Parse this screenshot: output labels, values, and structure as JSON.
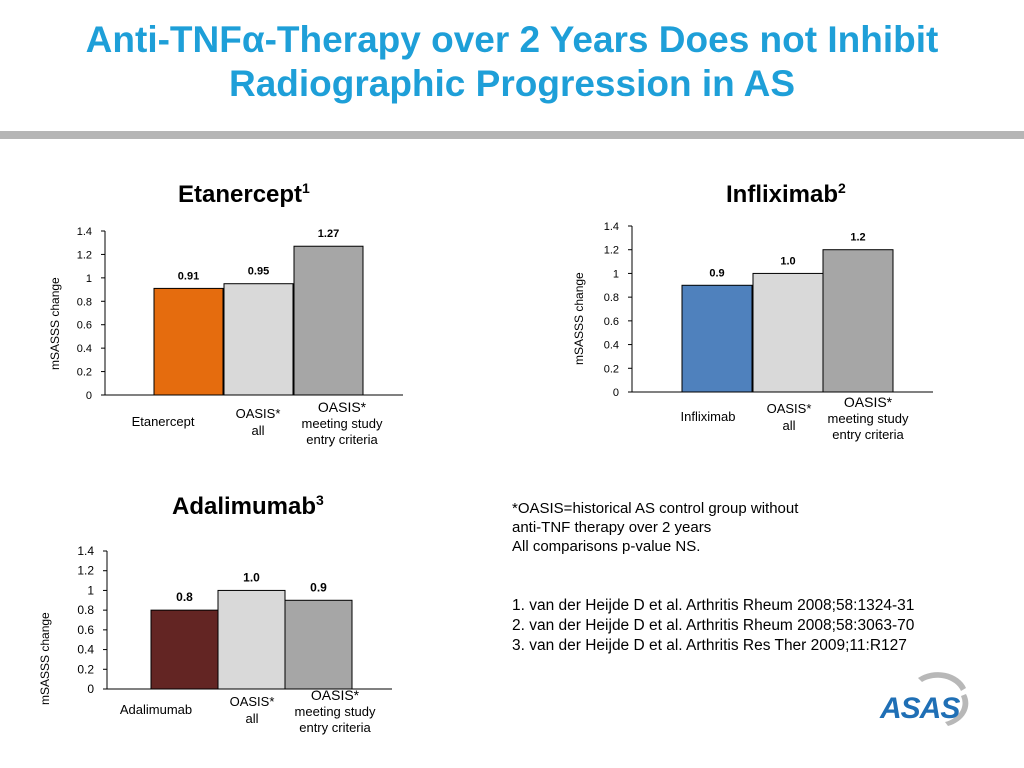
{
  "slide": {
    "title_line1": "Anti-TNFα-Therapy over 2 Years Does not Inhibit",
    "title_line2": "Radiographic Progression in AS",
    "note_lines": [
      "*OASIS=historical AS control group without",
      "anti-TNF therapy over 2 years",
      "All comparisons p-value NS."
    ],
    "references": [
      "1. van der Heijde D et al. Arthritis Rheum 2008;58:1324-31",
      "2. van der Heijde D et al. Arthritis Rheum 2008;58:3063-70",
      "3. van der Heijde D et al. Arthritis Res Ther 2009;11:R127"
    ],
    "logo_text": "ASAS"
  },
  "chart_data": [
    {
      "type": "bar",
      "title": "Etanercept",
      "title_sup": "1",
      "ylabel": "mSASSS  change",
      "ylim": [
        0,
        1.4
      ],
      "yticks": [
        "0",
        "0.2",
        "0.4",
        "0.6",
        "0.8",
        "1",
        "1.2",
        "1.4"
      ],
      "categories": [
        [
          "Etanercept"
        ],
        [
          "OASIS*",
          "all"
        ],
        [
          "OASIS*",
          "meeting study",
          "entry criteria"
        ]
      ],
      "values": [
        0.91,
        0.95,
        1.27
      ],
      "value_labels": [
        "0.91",
        "0.95",
        "1.27"
      ],
      "colors": [
        "#E56C0E",
        "#D9D9D9",
        "#A6A6A6"
      ]
    },
    {
      "type": "bar",
      "title": "Infliximab",
      "title_sup": "2",
      "ylabel": "mSASSS change",
      "ylim": [
        0,
        1.4
      ],
      "yticks": [
        "0",
        "0.2",
        "0.4",
        "0.6",
        "0.8",
        "1",
        "1.2",
        "1.4"
      ],
      "categories": [
        [
          "Infliximab"
        ],
        [
          "OASIS*",
          "all"
        ],
        [
          "OASIS*",
          "meeting study",
          "entry criteria"
        ]
      ],
      "values": [
        0.9,
        1.0,
        1.2
      ],
      "value_labels": [
        "0.9",
        "1.0",
        "1.2"
      ],
      "colors": [
        "#4F81BD",
        "#D9D9D9",
        "#A6A6A6"
      ]
    },
    {
      "type": "bar",
      "title": "Adalimumab",
      "title_sup": "3",
      "ylabel": "mSASSS change",
      "ylim": [
        0,
        1.4
      ],
      "yticks": [
        "0",
        "0.2",
        "0.4",
        "0.6",
        "0.8",
        "1",
        "1.2",
        "1.4"
      ],
      "categories": [
        [
          "Adalimumab"
        ],
        [
          "OASIS*",
          "all"
        ],
        [
          "OASIS*",
          "meeting study",
          "entry criteria"
        ]
      ],
      "values": [
        0.8,
        1.0,
        0.9
      ],
      "value_labels": [
        "0.8",
        "1.0",
        "0.9"
      ],
      "colors": [
        "#632523",
        "#D9D9D9",
        "#A6A6A6"
      ]
    }
  ]
}
